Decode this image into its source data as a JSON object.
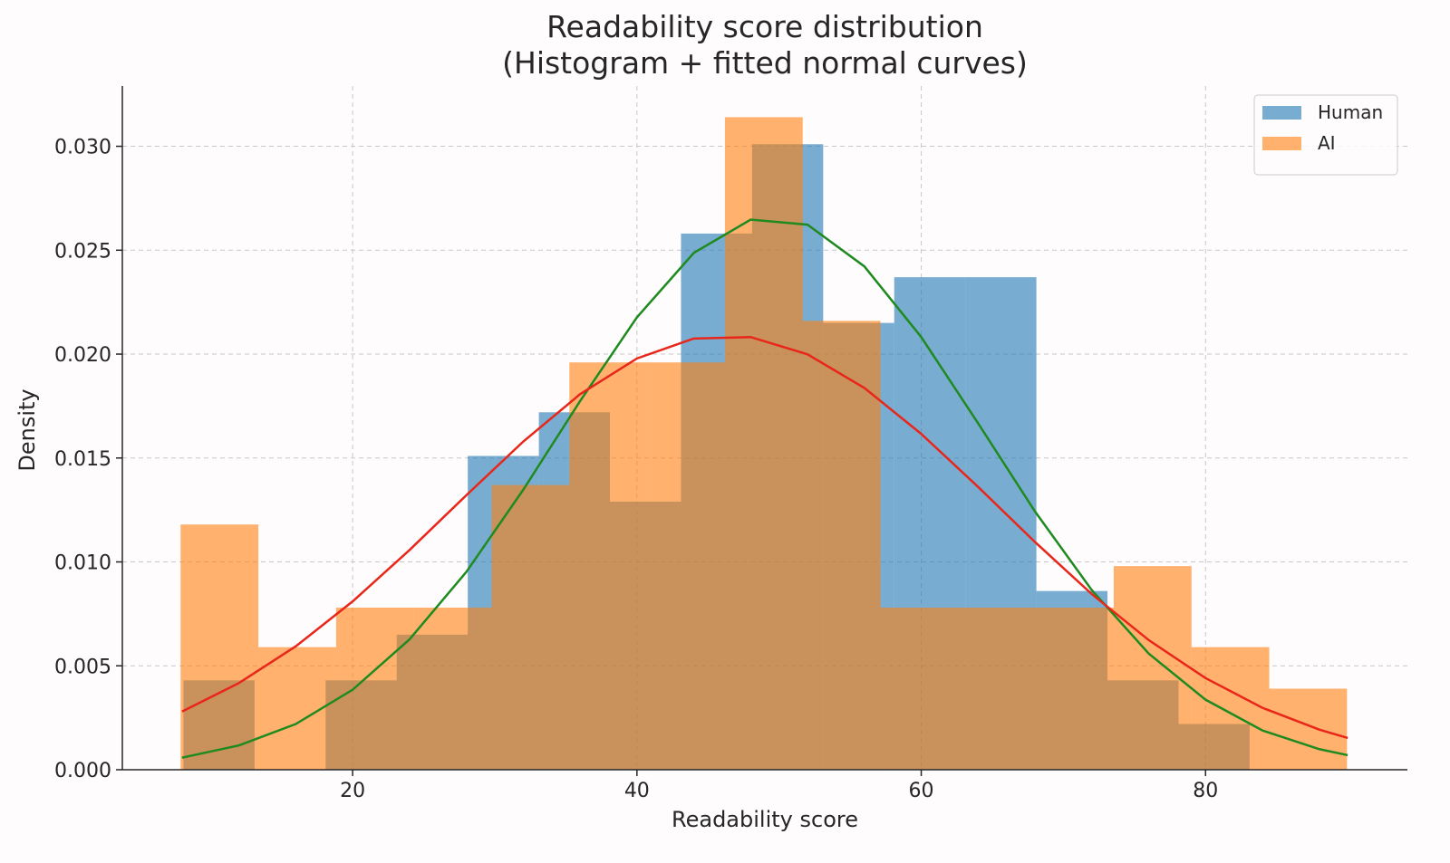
{
  "chart_data": {
    "type": "histogram",
    "title": "Readability score distribution\n(Histogram + fitted normal curves)",
    "x_label": "Readability score",
    "y_label": "Density",
    "xlim": [
      3.8,
      94.2
    ],
    "ylim": [
      0,
      0.0329
    ],
    "xticks": [
      20,
      40,
      60,
      80
    ],
    "yticks": [
      {
        "value": 0,
        "label": "0.000"
      },
      0.005,
      {
        "value": 0.01,
        "label": "0.010"
      },
      0.015,
      {
        "value": 0.02,
        "label": "0.020"
      },
      0.025,
      {
        "value": 0.03,
        "label": "0.030"
      }
    ],
    "grid": true,
    "legend": "upper right",
    "opacity": 0.6,
    "series": [
      {
        "name": "Human",
        "color": "#1f77b4",
        "bins": [
          8.1,
          13.1,
          18.1,
          23.1,
          28.1,
          33.1,
          38.1,
          43.1,
          48.1,
          53.1,
          58.1,
          63.1,
          68.1,
          73.1,
          78.1,
          83.1
        ],
        "values": [
          0.0043,
          0,
          0.0043,
          0.0065,
          0.0151,
          0.0172,
          0.0129,
          0.0258,
          0.0301,
          0.0215,
          0.0237,
          0.0237,
          0.0086,
          0.0043,
          0.0022
        ]
      },
      {
        "name": "AI",
        "color": "#ff7f0e",
        "bins": [
          7.9,
          13.37,
          18.84,
          24.31,
          29.78,
          35.25,
          40.72,
          46.19,
          51.66,
          57.13,
          62.6,
          68.07,
          73.54,
          79.01,
          84.48,
          89.95
        ],
        "values": [
          0.0118,
          0.0059,
          0.0078,
          0.0078,
          0.0137,
          0.0196,
          0.0196,
          0.0314,
          0.0216,
          0.0078,
          0.0078,
          0.0078,
          0.0098,
          0.0059,
          0.0039
        ]
      }
    ],
    "curves": [
      {
        "color": "#1f8a1f",
        "x": [
          8,
          12,
          16,
          20,
          24,
          28,
          32,
          36,
          40,
          44,
          48,
          52,
          56,
          60,
          64,
          68,
          72,
          76,
          80,
          84,
          88,
          90
        ],
        "values": [
          0.00058,
          0.00117,
          0.0022,
          0.00385,
          0.00627,
          0.00952,
          0.01347,
          0.01774,
          0.02177,
          0.02487,
          0.02647,
          0.02623,
          0.02422,
          0.02082,
          0.01667,
          0.01243,
          0.00864,
          0.00559,
          0.00337,
          0.00189,
          0.00099,
          0.0007
        ]
      },
      {
        "color": "#e8261a",
        "x": [
          8,
          12,
          16,
          20,
          24,
          28,
          32,
          36,
          40,
          44,
          48,
          52,
          56,
          60,
          64,
          68,
          72,
          76,
          80,
          84,
          88,
          90
        ],
        "values": [
          0.0028,
          0.00417,
          0.00594,
          0.0081,
          0.01057,
          0.01321,
          0.01579,
          0.01807,
          0.01979,
          0.02075,
          0.02082,
          0.01999,
          0.01837,
          0.01616,
          0.01361,
          0.01096,
          0.00845,
          0.00624,
          0.00441,
          0.00298,
          0.00193,
          0.00153
        ]
      }
    ]
  }
}
